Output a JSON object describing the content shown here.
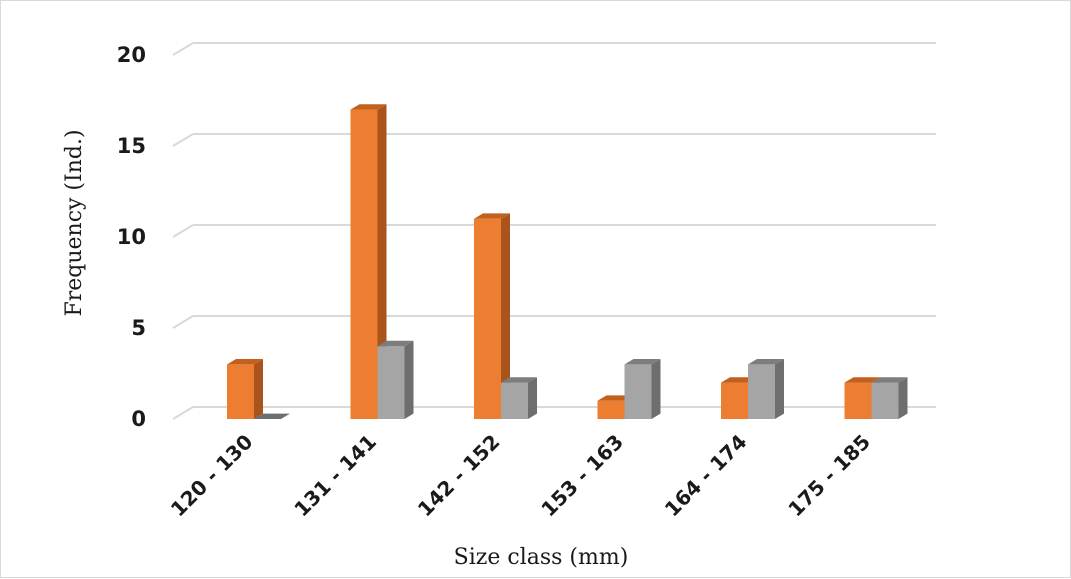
{
  "chart_data": {
    "type": "bar",
    "categories": [
      "120 - 130",
      "131 - 141",
      "142 - 152",
      "153 - 163",
      "164 - 174",
      "175 - 185"
    ],
    "series": [
      {
        "values": [
          3,
          17,
          11,
          1,
          2,
          2
        ],
        "color": "#ED7D31",
        "side_color": "#A9541C",
        "top_color": "#C2601D"
      },
      {
        "values": [
          0,
          4,
          2,
          3,
          3,
          2
        ],
        "color": "#A5A5A5",
        "side_color": "#6E6E6E",
        "top_color": "#7D7D7D"
      }
    ],
    "xlabel": "Size class (mm)",
    "ylabel": "Frequency (Ind.)",
    "ylim": [
      0,
      20
    ],
    "yticks": [
      0,
      5,
      10,
      15,
      20
    ],
    "grid": true,
    "style": "3d-clustered-column",
    "gridline_color": "#d9d9d9"
  }
}
